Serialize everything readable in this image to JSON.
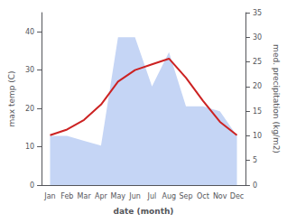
{
  "chart_data": {
    "type": "line",
    "xlabel": "date (month)",
    "ylabel": "max temp (C)",
    "y2label": "med. precipitation (kg/m2)",
    "categories": [
      "Jan",
      "Feb",
      "Mar",
      "Apr",
      "May",
      "Jun",
      "Jul",
      "Aug",
      "Sep",
      "Oct",
      "Nov",
      "Dec"
    ],
    "series": [
      {
        "type": "area",
        "axis": "y2",
        "color": "#c5d5f5",
        "values": [
          10,
          10,
          9,
          8,
          30,
          30,
          20,
          27,
          16,
          16,
          15,
          10
        ]
      },
      {
        "type": "line",
        "color": "#cc2222",
        "values": [
          13.0,
          14.5,
          17.0,
          21.0,
          27.0,
          30.0,
          31.5,
          33.0,
          28.0,
          22.0,
          16.5,
          13.0
        ]
      }
    ],
    "ylim": [
      0,
      45
    ],
    "yticks": [
      0,
      10,
      20,
      30,
      40
    ],
    "y2lim": [
      0,
      35
    ],
    "y2ticks": [
      0,
      5,
      10,
      15,
      20,
      25,
      30,
      35
    ],
    "grid": false
  }
}
